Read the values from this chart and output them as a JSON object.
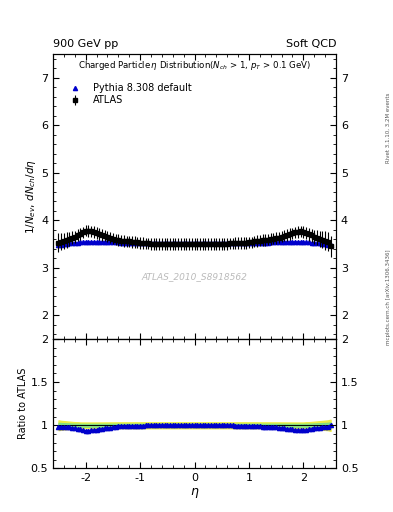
{
  "title_left": "900 GeV pp",
  "title_right": "Soft QCD",
  "plot_title": "Charged Particleη Distribution(N$_{ch}$ > 1, p$_{T}$ > 0.1 GeV)",
  "ylabel_main": "1/N$_{ev}$ dN$_{ch}$/dη",
  "ylabel_ratio": "Ratio to ATLAS",
  "xlabel": "η",
  "right_label": "mcplots.cern.ch [arXiv:1306.3436]",
  "right_label2": "Rivet 3.1.10, 3.2M events",
  "watermark": "ATLAS_2010_S8918562",
  "ylim_main": [
    1.5,
    7.5
  ],
  "ylim_ratio": [
    0.5,
    2.0
  ],
  "xlim": [
    -2.6,
    2.6
  ],
  "atlas_eta": [
    -2.5,
    -2.45,
    -2.4,
    -2.35,
    -2.3,
    -2.25,
    -2.2,
    -2.15,
    -2.1,
    -2.05,
    -2.0,
    -1.95,
    -1.9,
    -1.85,
    -1.8,
    -1.75,
    -1.7,
    -1.65,
    -1.6,
    -1.55,
    -1.5,
    -1.45,
    -1.4,
    -1.35,
    -1.3,
    -1.25,
    -1.2,
    -1.15,
    -1.1,
    -1.05,
    -1.0,
    -0.95,
    -0.9,
    -0.85,
    -0.8,
    -0.75,
    -0.7,
    -0.65,
    -0.6,
    -0.55,
    -0.5,
    -0.45,
    -0.4,
    -0.35,
    -0.3,
    -0.25,
    -0.2,
    -0.15,
    -0.1,
    -0.05,
    0.0,
    0.05,
    0.1,
    0.15,
    0.2,
    0.25,
    0.3,
    0.35,
    0.4,
    0.45,
    0.5,
    0.55,
    0.6,
    0.65,
    0.7,
    0.75,
    0.8,
    0.85,
    0.9,
    0.95,
    1.0,
    1.05,
    1.1,
    1.15,
    1.2,
    1.25,
    1.3,
    1.35,
    1.4,
    1.45,
    1.5,
    1.55,
    1.6,
    1.65,
    1.7,
    1.75,
    1.8,
    1.85,
    1.9,
    1.95,
    2.0,
    2.05,
    2.1,
    2.15,
    2.2,
    2.25,
    2.3,
    2.35,
    2.4,
    2.45,
    2.5
  ],
  "atlas_vals": [
    3.52,
    3.54,
    3.56,
    3.58,
    3.6,
    3.63,
    3.65,
    3.68,
    3.71,
    3.74,
    3.78,
    3.77,
    3.76,
    3.75,
    3.73,
    3.71,
    3.69,
    3.67,
    3.65,
    3.63,
    3.61,
    3.59,
    3.58,
    3.57,
    3.56,
    3.55,
    3.55,
    3.54,
    3.54,
    3.53,
    3.52,
    3.52,
    3.51,
    3.51,
    3.5,
    3.5,
    3.5,
    3.5,
    3.5,
    3.5,
    3.5,
    3.5,
    3.5,
    3.5,
    3.5,
    3.5,
    3.5,
    3.5,
    3.5,
    3.5,
    3.5,
    3.5,
    3.5,
    3.5,
    3.5,
    3.5,
    3.5,
    3.5,
    3.5,
    3.5,
    3.5,
    3.5,
    3.5,
    3.51,
    3.51,
    3.52,
    3.52,
    3.52,
    3.52,
    3.52,
    3.53,
    3.53,
    3.55,
    3.56,
    3.57,
    3.58,
    3.58,
    3.59,
    3.6,
    3.61,
    3.62,
    3.63,
    3.65,
    3.67,
    3.69,
    3.71,
    3.72,
    3.74,
    3.75,
    3.76,
    3.75,
    3.73,
    3.7,
    3.68,
    3.65,
    3.63,
    3.61,
    3.59,
    3.57,
    3.54,
    3.45
  ],
  "atlas_err": [
    0.2,
    0.18,
    0.17,
    0.16,
    0.15,
    0.14,
    0.13,
    0.13,
    0.12,
    0.12,
    0.12,
    0.12,
    0.12,
    0.12,
    0.12,
    0.12,
    0.12,
    0.12,
    0.12,
    0.12,
    0.12,
    0.12,
    0.12,
    0.12,
    0.12,
    0.12,
    0.12,
    0.12,
    0.12,
    0.12,
    0.12,
    0.12,
    0.12,
    0.12,
    0.12,
    0.12,
    0.12,
    0.12,
    0.12,
    0.12,
    0.12,
    0.12,
    0.12,
    0.12,
    0.12,
    0.12,
    0.12,
    0.12,
    0.12,
    0.12,
    0.12,
    0.12,
    0.12,
    0.12,
    0.12,
    0.12,
    0.12,
    0.12,
    0.12,
    0.12,
    0.12,
    0.12,
    0.12,
    0.12,
    0.12,
    0.12,
    0.12,
    0.12,
    0.12,
    0.12,
    0.12,
    0.12,
    0.12,
    0.12,
    0.12,
    0.12,
    0.12,
    0.12,
    0.12,
    0.12,
    0.12,
    0.12,
    0.12,
    0.12,
    0.12,
    0.12,
    0.12,
    0.12,
    0.12,
    0.12,
    0.12,
    0.13,
    0.13,
    0.14,
    0.15,
    0.16,
    0.17,
    0.18,
    0.19,
    0.2,
    0.22
  ],
  "pythia_eta": [
    -2.5,
    -2.45,
    -2.4,
    -2.35,
    -2.3,
    -2.25,
    -2.2,
    -2.15,
    -2.1,
    -2.05,
    -2.0,
    -1.95,
    -1.9,
    -1.85,
    -1.8,
    -1.75,
    -1.7,
    -1.65,
    -1.6,
    -1.55,
    -1.5,
    -1.45,
    -1.4,
    -1.35,
    -1.3,
    -1.25,
    -1.2,
    -1.15,
    -1.1,
    -1.05,
    -1.0,
    -0.95,
    -0.9,
    -0.85,
    -0.8,
    -0.75,
    -0.7,
    -0.65,
    -0.6,
    -0.55,
    -0.5,
    -0.45,
    -0.4,
    -0.35,
    -0.3,
    -0.25,
    -0.2,
    -0.15,
    -0.1,
    -0.05,
    0.0,
    0.05,
    0.1,
    0.15,
    0.2,
    0.25,
    0.3,
    0.35,
    0.4,
    0.45,
    0.5,
    0.55,
    0.6,
    0.65,
    0.7,
    0.75,
    0.8,
    0.85,
    0.9,
    0.95,
    1.0,
    1.05,
    1.1,
    1.15,
    1.2,
    1.25,
    1.3,
    1.35,
    1.4,
    1.45,
    1.5,
    1.55,
    1.6,
    1.65,
    1.7,
    1.75,
    1.8,
    1.85,
    1.9,
    1.95,
    2.0,
    2.05,
    2.1,
    2.15,
    2.2,
    2.25,
    2.3,
    2.35,
    2.4,
    2.45,
    2.5
  ],
  "pythia_vals": [
    3.47,
    3.48,
    3.49,
    3.5,
    3.51,
    3.51,
    3.52,
    3.52,
    3.53,
    3.53,
    3.54,
    3.54,
    3.54,
    3.54,
    3.54,
    3.54,
    3.54,
    3.54,
    3.54,
    3.53,
    3.53,
    3.53,
    3.53,
    3.52,
    3.52,
    3.52,
    3.52,
    3.52,
    3.52,
    3.51,
    3.51,
    3.51,
    3.51,
    3.51,
    3.51,
    3.51,
    3.51,
    3.51,
    3.51,
    3.51,
    3.51,
    3.51,
    3.51,
    3.51,
    3.51,
    3.51,
    3.51,
    3.51,
    3.51,
    3.51,
    3.51,
    3.51,
    3.51,
    3.51,
    3.51,
    3.51,
    3.51,
    3.51,
    3.51,
    3.51,
    3.51,
    3.51,
    3.51,
    3.51,
    3.51,
    3.51,
    3.51,
    3.51,
    3.51,
    3.51,
    3.51,
    3.51,
    3.52,
    3.52,
    3.52,
    3.52,
    3.52,
    3.52,
    3.53,
    3.53,
    3.53,
    3.53,
    3.54,
    3.54,
    3.54,
    3.54,
    3.54,
    3.54,
    3.54,
    3.54,
    3.54,
    3.53,
    3.53,
    3.52,
    3.52,
    3.51,
    3.51,
    3.5,
    3.49,
    3.48,
    3.47
  ],
  "atlas_color": "black",
  "pythia_color": "#0000cc",
  "band_color_inner": "#80dd80",
  "band_color_outer": "#eeee44",
  "yticks_main": [
    2,
    3,
    4,
    5,
    6,
    7
  ],
  "yticks_ratio": [
    0.5,
    1.0,
    1.5,
    2.0
  ],
  "xticks": [
    -2,
    -1,
    0,
    1,
    2
  ]
}
